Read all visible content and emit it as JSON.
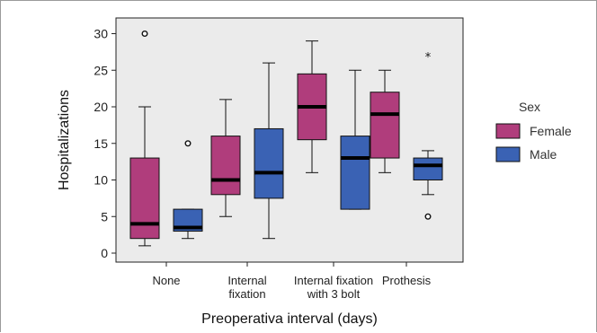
{
  "chart_data": {
    "type": "boxplot",
    "xlabel": "Preoperativa interval (days)",
    "ylabel": "Hospitalizations",
    "ylim": [
      -1,
      32
    ],
    "yticks": [
      0,
      5,
      10,
      15,
      20,
      25,
      30
    ],
    "grid": false,
    "legend_placement": "right",
    "categories": [
      [
        "None"
      ],
      [
        "Internal",
        "fixation"
      ],
      [
        "Internal fixation",
        "with 3 bolt"
      ],
      [
        "Prothesis"
      ]
    ],
    "legend": {
      "title": "Sex",
      "entries": [
        {
          "name": "Female",
          "color": "#b03d7c"
        },
        {
          "name": "Male",
          "color": "#3a62b4"
        }
      ]
    },
    "series": [
      {
        "name": "Female",
        "color": "#b03d7c",
        "boxes": [
          {
            "min": 1,
            "q1": 2,
            "median": 4,
            "q3": 13,
            "max": 20,
            "outliers": [
              {
                "value": 30,
                "marker": "circle"
              }
            ]
          },
          {
            "min": 5,
            "q1": 8,
            "median": 10,
            "q3": 16,
            "max": 21,
            "outliers": []
          },
          {
            "min": 11,
            "q1": 15.5,
            "median": 20,
            "q3": 24.5,
            "max": 29,
            "outliers": []
          },
          {
            "min": 11,
            "q1": 13,
            "median": 19,
            "q3": 22,
            "max": 25,
            "outliers": []
          }
        ]
      },
      {
        "name": "Male",
        "color": "#3a62b4",
        "boxes": [
          {
            "min": 2,
            "q1": 3,
            "median": 3.5,
            "q3": 6,
            "max": 6,
            "outliers": [
              {
                "value": 15,
                "marker": "circle"
              }
            ]
          },
          {
            "min": 2,
            "q1": 7.5,
            "median": 11,
            "q3": 17,
            "max": 26,
            "outliers": []
          },
          {
            "min": 6,
            "q1": 6,
            "median": 13,
            "q3": 16,
            "max": 25,
            "outliers": []
          },
          {
            "min": 8,
            "q1": 10,
            "median": 12,
            "q3": 13,
            "max": 14,
            "outliers": [
              {
                "value": 5,
                "marker": "circle"
              },
              {
                "value": 27,
                "marker": "star"
              }
            ]
          }
        ]
      }
    ]
  }
}
